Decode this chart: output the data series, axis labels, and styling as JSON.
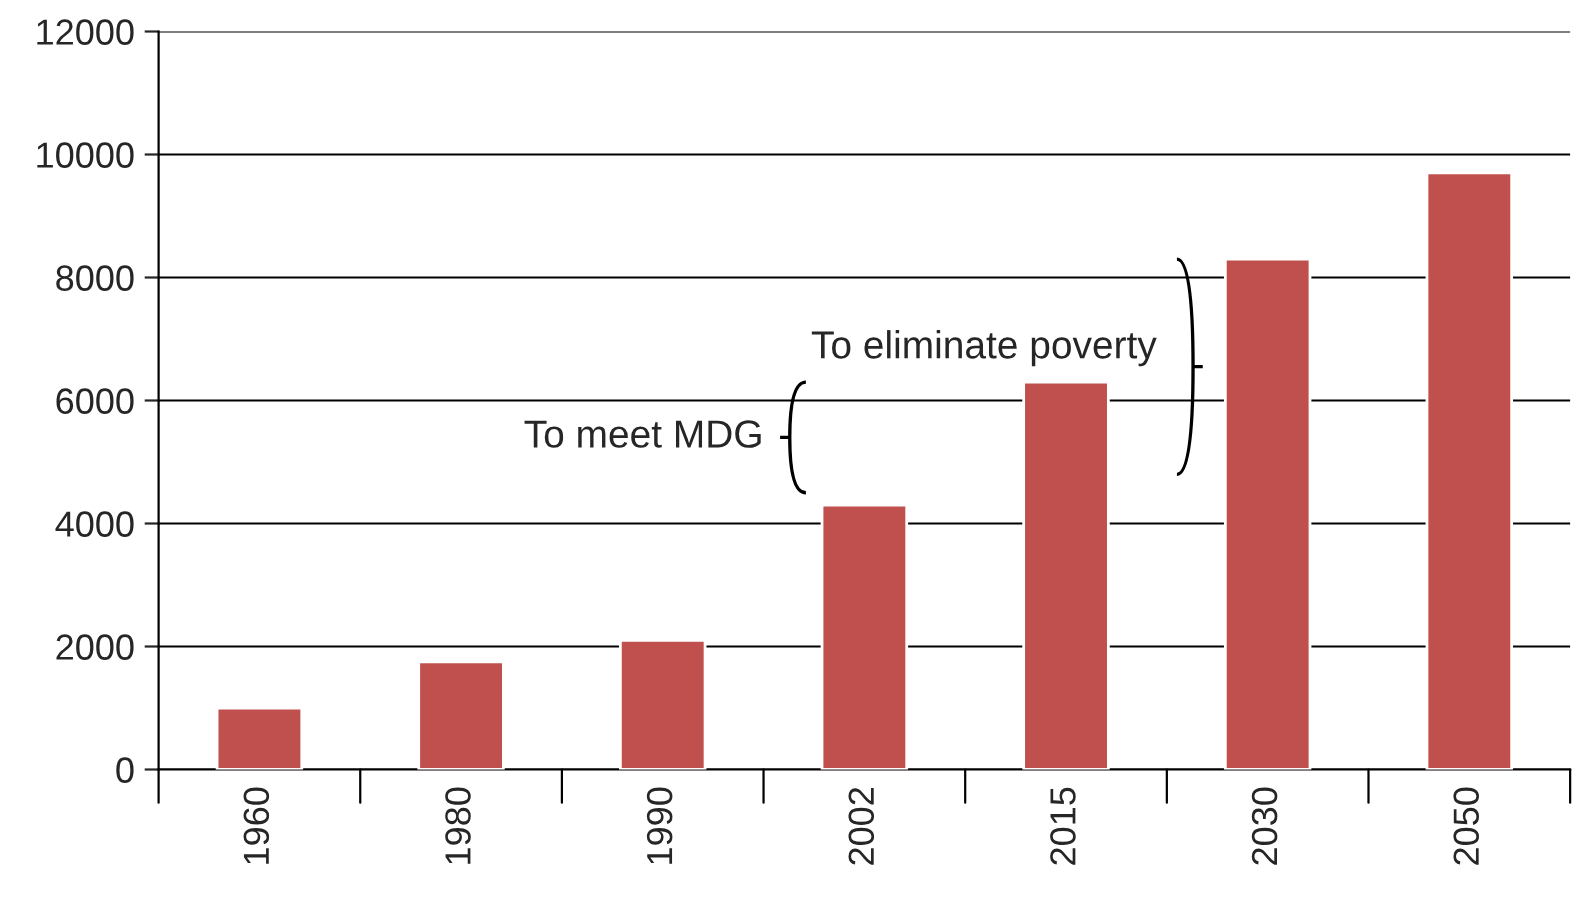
{
  "chart_data": {
    "type": "bar",
    "categories": [
      "1960",
      "1980",
      "1990",
      "2002",
      "2015",
      "2030",
      "2050"
    ],
    "values": [
      1000,
      1750,
      2100,
      4300,
      6300,
      8300,
      9700
    ],
    "color": "#c0504d",
    "ylim": [
      0,
      12000
    ],
    "yticks": [
      0,
      2000,
      4000,
      6000,
      8000,
      10000,
      12000
    ],
    "grid": "y",
    "annotations": [
      "To meet MDG",
      "To eliminate poverty"
    ]
  }
}
